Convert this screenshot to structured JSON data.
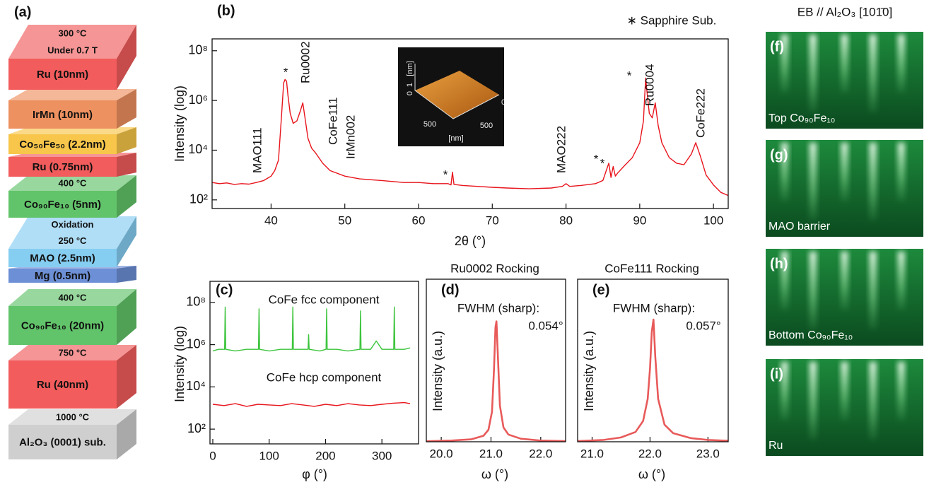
{
  "panel_a": {
    "label": "(a)",
    "layers": [
      {
        "name": "Ru (10nm)",
        "color": "#f25c5c",
        "notes": [
          "300 °C",
          "Under 0.7 T"
        ]
      },
      {
        "name": "IrMn (10nm)",
        "color": "#ee9160"
      },
      {
        "name": "Co₅₀Fe₅₀ (2.2nm)",
        "color": "#f7c64a"
      },
      {
        "name": "Ru (0.75nm)",
        "color": "#f25c5c"
      },
      {
        "name": "Co₉₀Fe₁₀ (5nm)",
        "color": "#62c46a",
        "notes": [
          "400 °C"
        ]
      },
      {
        "name": "MAO (2.5nm)",
        "color": "#86cdf2",
        "notes": [
          "Oxidation",
          "250 °C"
        ]
      },
      {
        "name": "Mg (0.5nm)",
        "color": "#6d8fd6"
      },
      {
        "name": "Co₉₀Fe₁₀ (20nm)",
        "color": "#62c46a",
        "notes": [
          "400 °C"
        ]
      },
      {
        "name": "Ru (40nm)",
        "color": "#f25c5c",
        "notes": [
          "750 °C"
        ]
      },
      {
        "name": "Al₂O₃ (0001) sub.",
        "color": "#cfcfcf",
        "notes": [
          "1000 °C"
        ]
      }
    ]
  },
  "chart_data": [
    {
      "type": "line",
      "panel_label": "(b)",
      "xlabel": "2θ (°)",
      "ylabel": "Intensity (log)",
      "log_y": true,
      "color": "#e8141c",
      "xlim": [
        32,
        102
      ],
      "xticks": [
        40,
        50,
        60,
        70,
        80,
        90,
        100
      ],
      "ylim": [
        45,
        300000000.0
      ],
      "yticks": [
        {
          "value": 100,
          "label": "10²"
        },
        {
          "value": 10000,
          "label": "10⁴"
        },
        {
          "value": 1000000,
          "label": "10⁶"
        },
        {
          "value": 100000000,
          "label": "10⁸"
        }
      ],
      "x": [
        32,
        33,
        34,
        35,
        36,
        37,
        38,
        39,
        40,
        40.5,
        41,
        41.4,
        41.7,
        41.9,
        42.1,
        42.3,
        42.6,
        43,
        43.5,
        44,
        44.3,
        44.6,
        45,
        45.5,
        46,
        47,
        48,
        50,
        52,
        55,
        58,
        60,
        62,
        64,
        64.4,
        64.6,
        64.8,
        66,
        68,
        70,
        72,
        75,
        78,
        79.5,
        80,
        80.5,
        82,
        84,
        85,
        85.8,
        86.1,
        86.4,
        86.7,
        87,
        88,
        89,
        90,
        90.5,
        90.8,
        91,
        91.3,
        91.7,
        92.1,
        92.5,
        93,
        94,
        95,
        96,
        97,
        97.6,
        98.2,
        99,
        100,
        101,
        102
      ],
      "values": [
        500,
        450,
        480,
        420,
        450,
        430,
        500,
        600,
        900,
        1500,
        4000,
        200000.0,
        5000000.0,
        7000000.0,
        6000000.0,
        1500000.0,
        300000.0,
        120000.0,
        150000.0,
        400000.0,
        800000.0,
        200000.0,
        30000.0,
        12000.0,
        8000,
        3000,
        1500,
        900,
        700,
        600,
        500,
        500,
        450,
        450,
        400,
        1300,
        420,
        380,
        350,
        320,
        300,
        280,
        300,
        350,
        450,
        350,
        380,
        450,
        600,
        3000,
        800,
        2200,
        900,
        1200,
        2500,
        5000,
        20000.0,
        150000.0,
        8000000.0,
        2000000.0,
        300000.0,
        200000.0,
        800000.0,
        100000.0,
        20000.0,
        5000,
        3000,
        2600,
        7000,
        20000.0,
        6000,
        1000,
        400,
        200,
        150
      ],
      "annotations": [
        "MAO111",
        "Ru0002",
        "CoFe111",
        "IrMn002",
        "MAO222",
        "Ru0004",
        "CoFe222",
        "*",
        "*",
        "*",
        "*",
        "*",
        "∗ Sapphire Sub."
      ],
      "inset_labels": [
        "0",
        "1",
        "[nm]",
        "500",
        "0",
        "500",
        "[nm]"
      ]
    },
    {
      "type": "line",
      "panel_label": "(c)",
      "xlabel": "φ (°)",
      "ylabel": "Intensity (log)",
      "log_y": true,
      "xlim": [
        -5,
        365
      ],
      "xticks": [
        0,
        100,
        200,
        300
      ],
      "ylim": [
        20,
        1000000000.0
      ],
      "yticks": [
        {
          "value": 100,
          "label": "10²"
        },
        {
          "value": 10000,
          "label": "10⁴"
        },
        {
          "value": 1000000,
          "label": "10⁶"
        },
        {
          "value": 100000000,
          "label": "10⁸"
        }
      ],
      "series": [
        {
          "name": "CoFe fcc component",
          "color": "#3cc43c",
          "x": [
            0,
            10,
            21,
            22,
            23,
            40,
            60,
            81,
            82,
            83,
            100,
            120,
            141,
            142,
            143,
            160,
            169,
            170,
            171,
            190,
            201,
            202,
            203,
            220,
            240,
            261,
            262,
            263,
            280,
            290,
            300,
            321,
            322,
            323,
            340,
            350
          ],
          "values": [
            500000.0,
            600000.0,
            600000.0,
            60000000.0,
            600000.0,
            500000.0,
            600000.0,
            600000.0,
            50000000.0,
            600000.0,
            500000.0,
            600000.0,
            600000.0,
            60000000.0,
            600000.0,
            600000.0,
            600000.0,
            3000000.0,
            600000.0,
            500000.0,
            600000.0,
            50000000.0,
            600000.0,
            600000.0,
            500000.0,
            600000.0,
            40000000.0,
            600000.0,
            600000.0,
            1500000.0,
            600000.0,
            600000.0,
            60000000.0,
            600000.0,
            600000.0,
            700000.0
          ]
        },
        {
          "name": "CoFe hcp component",
          "color": "#e8141c",
          "x": [
            0,
            20,
            40,
            60,
            80,
            100,
            120,
            140,
            160,
            180,
            200,
            220,
            240,
            260,
            280,
            300,
            320,
            340,
            350
          ],
          "values": [
            1500,
            1300,
            1600,
            1200,
            1500,
            1400,
            1300,
            1600,
            1400,
            1200,
            1500,
            1300,
            1600,
            1400,
            1300,
            1500,
            1700,
            1800,
            1600
          ]
        }
      ]
    },
    {
      "type": "line",
      "panel_label": "(d)",
      "title": "Ru0002 Rocking",
      "xlabel": "ω (°)",
      "ylabel": "Intensity (a.u.)",
      "color": "#e85a5a",
      "xlim": [
        19.7,
        22.5
      ],
      "xticks": [
        {
          "value": 20,
          "label": "20.0"
        },
        {
          "value": 21,
          "label": "21.0"
        },
        {
          "value": 22,
          "label": "22.0"
        }
      ],
      "ylim": [
        0,
        1.35
      ],
      "x": [
        19.7,
        20.2,
        20.6,
        20.85,
        20.95,
        21.02,
        21.06,
        21.09,
        21.11,
        21.14,
        21.18,
        21.25,
        21.35,
        21.6,
        22,
        22.5
      ],
      "values": [
        0.004,
        0.01,
        0.02,
        0.05,
        0.1,
        0.25,
        0.6,
        0.95,
        1.0,
        0.7,
        0.3,
        0.12,
        0.06,
        0.025,
        0.01,
        0.005
      ],
      "annotations": [
        "FWHM (sharp):",
        "0.054°"
      ]
    },
    {
      "type": "line",
      "panel_label": "(e)",
      "title": "CoFe111 Rocking",
      "xlabel": "ω (°)",
      "ylabel": "Intensity (a.u.)",
      "color": "#e85a5a",
      "xlim": [
        20.75,
        23.35
      ],
      "xticks": [
        {
          "value": 21,
          "label": "21.0"
        },
        {
          "value": 22,
          "label": "22.0"
        },
        {
          "value": 23,
          "label": "23.0"
        }
      ],
      "ylim": [
        0,
        1.33
      ],
      "x": [
        20.75,
        21.2,
        21.5,
        21.75,
        21.88,
        21.96,
        22.0,
        22.03,
        22.06,
        22.09,
        22.14,
        22.25,
        22.4,
        22.7,
        23.0,
        23.35
      ],
      "values": [
        0.005,
        0.015,
        0.035,
        0.08,
        0.17,
        0.35,
        0.6,
        0.9,
        1.0,
        0.7,
        0.35,
        0.14,
        0.07,
        0.03,
        0.015,
        0.008
      ],
      "annotations": [
        "FWHM (sharp):",
        "0.057°"
      ]
    }
  ],
  "rheed": {
    "header": "EB // Al₂O₃ [101̄0]",
    "panels": [
      {
        "label": "(f)",
        "caption": "Top Co₉₀Fe₁₀"
      },
      {
        "label": "(g)",
        "caption": "MAO barrier"
      },
      {
        "label": "(h)",
        "caption": "Bottom Co₉₀Fe₁₀"
      },
      {
        "label": "(i)",
        "caption": "Ru"
      }
    ]
  }
}
